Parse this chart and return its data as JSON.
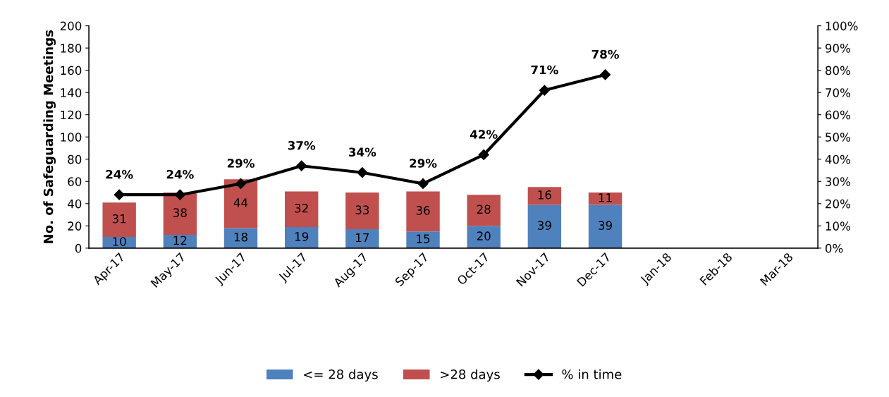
{
  "chart_data": {
    "type": "bar",
    "stacked": true,
    "ylabel": "No. of Safeguarding Meetings",
    "categories": [
      "Apr-17",
      "May-17",
      "Jun-17",
      "Jul-17",
      "Aug-17",
      "Sep-17",
      "Oct-17",
      "Nov-17",
      "Dec-17",
      "Jan-18",
      "Feb-18",
      "Mar-18"
    ],
    "series": [
      {
        "name": "<= 28 days",
        "color": "#4f81bd",
        "values": [
          10,
          12,
          18,
          19,
          17,
          15,
          20,
          39,
          39,
          null,
          null,
          null
        ]
      },
      {
        "name": ">28 days",
        "color": "#c0504d",
        "values": [
          31,
          38,
          44,
          32,
          33,
          36,
          28,
          16,
          11,
          null,
          null,
          null
        ]
      },
      {
        "name": "% in time",
        "type": "line",
        "axis": "y2",
        "color": "#000000",
        "marker": "diamond",
        "line_style": "solid",
        "values": [
          24,
          24,
          29,
          37,
          34,
          29,
          42,
          71,
          78,
          null,
          null,
          null
        ],
        "value_labels": [
          "24%",
          "24%",
          "29%",
          "37%",
          "34%",
          "29%",
          "42%",
          "71%",
          "78%",
          null,
          null,
          null
        ]
      }
    ],
    "data_labels": true,
    "ylim": [
      0,
      200
    ],
    "yticks": [
      0,
      20,
      40,
      60,
      80,
      100,
      120,
      140,
      160,
      180,
      200
    ],
    "y2lim": [
      0,
      100
    ],
    "y2ticks": [
      {
        "value": 0,
        "label": "0%"
      },
      {
        "value": 10,
        "label": "10%"
      },
      {
        "value": 20,
        "label": "20%"
      },
      {
        "value": 30,
        "label": "30%"
      },
      {
        "value": 40,
        "label": "40%"
      },
      {
        "value": 50,
        "label": "50%"
      },
      {
        "value": 60,
        "label": "60%"
      },
      {
        "value": 70,
        "label": "70%"
      },
      {
        "value": 80,
        "label": "80%"
      },
      {
        "value": 90,
        "label": "90%"
      },
      {
        "value": 100,
        "label": "100%"
      }
    ],
    "grid": false,
    "legend": "bottom"
  }
}
